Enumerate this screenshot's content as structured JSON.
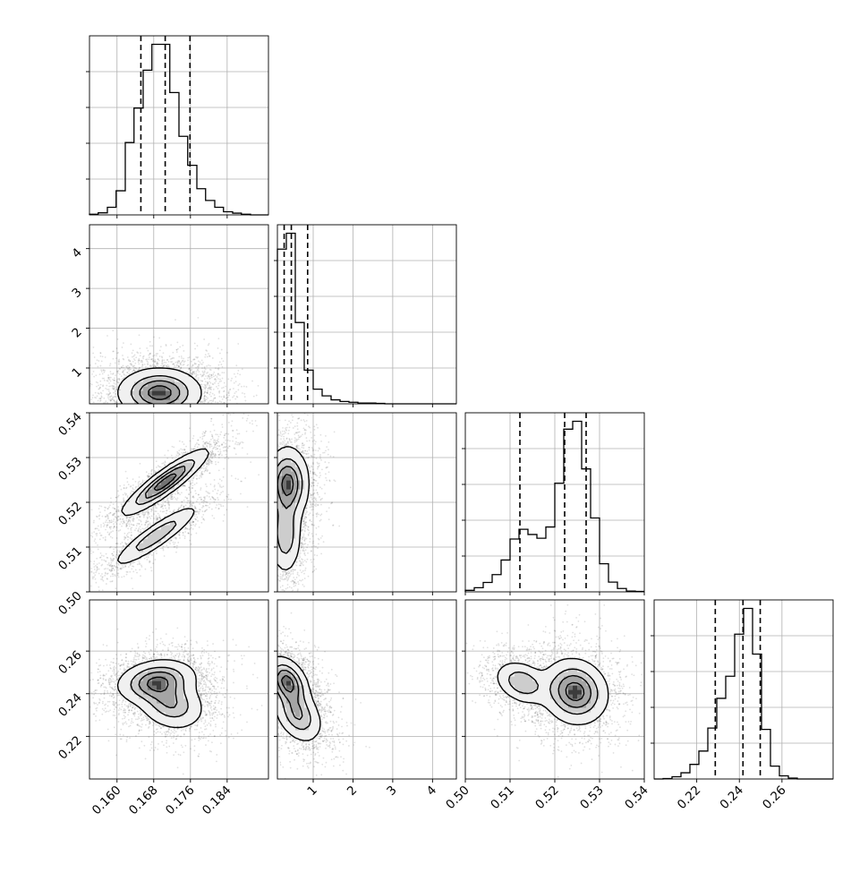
{
  "chart_data": {
    "type": "scatter",
    "subtype": "corner-plot",
    "grid": true,
    "quantiles": [
      0.16,
      0.5,
      0.84
    ],
    "parameters": [
      {
        "range": [
          0.154,
          0.193
        ],
        "ticks": [
          0.16,
          0.168,
          0.176,
          0.184
        ],
        "tick_labels": [
          "0.160",
          "0.168",
          "0.176",
          "0.184"
        ]
      },
      {
        "range": [
          0.1,
          4.6
        ],
        "ticks": [
          1,
          2,
          3,
          4
        ],
        "tick_labels": [
          "1",
          "2",
          "3",
          "4"
        ]
      },
      {
        "range": [
          0.5,
          0.54
        ],
        "ticks": [
          0.5,
          0.51,
          0.52,
          0.53,
          0.54
        ],
        "tick_labels": [
          "0.50",
          "0.51",
          "0.52",
          "0.53",
          "0.54"
        ]
      },
      {
        "range": [
          0.2,
          0.284
        ],
        "ticks": [
          0.22,
          0.24,
          0.26
        ],
        "tick_labels": [
          "0.22",
          "0.24",
          "0.26"
        ]
      }
    ],
    "marginals": [
      {
        "param": 0,
        "bin_edges": [
          0.154,
          0.1559,
          0.1579,
          0.1598,
          0.1618,
          0.1637,
          0.1657,
          0.1676,
          0.1696,
          0.1715,
          0.1735,
          0.1754,
          0.1774,
          0.1793,
          0.1813,
          0.1832,
          0.1852,
          0.1871,
          0.1891,
          0.191,
          0.193
        ],
        "counts": [
          2,
          6,
          22,
          70,
          210,
          310,
          420,
          495,
          495,
          355,
          228,
          144,
          76,
          42,
          22,
          9,
          5,
          2,
          0,
          0
        ],
        "quantile_values": [
          0.1652,
          0.1705,
          0.1759
        ]
      },
      {
        "param": 1,
        "bin_edges": [
          0.1,
          0.325,
          0.55,
          0.775,
          1.0,
          1.225,
          1.45,
          1.675,
          1.9,
          2.125,
          2.35,
          2.575,
          2.8,
          3.025,
          3.25,
          3.475,
          3.7,
          3.925,
          4.15,
          4.375,
          4.6
        ],
        "counts": [
          390,
          430,
          205,
          85,
          37,
          20,
          10,
          6,
          4,
          2,
          2,
          1,
          0,
          0,
          0,
          0,
          0,
          0,
          0,
          0
        ],
        "quantile_values": [
          0.27,
          0.45,
          0.86
        ]
      },
      {
        "param": 2,
        "bin_edges": [
          0.5,
          0.502,
          0.504,
          0.506,
          0.508,
          0.51,
          0.512,
          0.514,
          0.516,
          0.518,
          0.52,
          0.522,
          0.524,
          0.526,
          0.528,
          0.53,
          0.532,
          0.534,
          0.536,
          0.538,
          0.54
        ],
        "counts": [
          4,
          11,
          25,
          46,
          85,
          141,
          167,
          153,
          143,
          173,
          290,
          434,
          455,
          328,
          197,
          75,
          26,
          9,
          2,
          1
        ],
        "quantile_values": [
          0.5122,
          0.5222,
          0.527
        ]
      },
      {
        "param": 3,
        "bin_edges": [
          0.2,
          0.2042,
          0.2084,
          0.2126,
          0.2168,
          0.221,
          0.2252,
          0.2294,
          0.2336,
          0.2378,
          0.242,
          0.2462,
          0.2504,
          0.2546,
          0.2588,
          0.263,
          0.2672,
          0.2714,
          0.2756,
          0.2798,
          0.284
        ],
        "counts": [
          0,
          1,
          5,
          14,
          33,
          63,
          115,
          182,
          232,
          327,
          385,
          282,
          112,
          29,
          7,
          2,
          0,
          0,
          0,
          0
        ],
        "quantile_values": [
          0.2287,
          0.2417,
          0.2498
        ]
      }
    ],
    "joints": [
      {
        "x_param": 0,
        "y_param": 1,
        "modes": [
          {
            "cx": 0.1693,
            "cy": 0.38,
            "sx": 0.0044,
            "sy": 0.3,
            "rho": 0.0,
            "w": 1
          }
        ]
      },
      {
        "x_param": 0,
        "y_param": 2,
        "modes": [
          {
            "cx": 0.1705,
            "cy": 0.5245,
            "sx": 0.0046,
            "sy": 0.0036,
            "rho": 0.9,
            "w": 0.62
          },
          {
            "cx": 0.1685,
            "cy": 0.5125,
            "sx": 0.0046,
            "sy": 0.0034,
            "rho": 0.9,
            "w": 0.38
          }
        ]
      },
      {
        "x_param": 0,
        "y_param": 3,
        "modes": [
          {
            "cx": 0.1686,
            "cy": 0.2458,
            "sx": 0.0042,
            "sy": 0.005,
            "rho": 0.2,
            "w": 0.58
          },
          {
            "cx": 0.1718,
            "cy": 0.2352,
            "sx": 0.0036,
            "sy": 0.006,
            "rho": -0.2,
            "w": 0.42
          }
        ]
      },
      {
        "x_param": 1,
        "y_param": 2,
        "modes": [
          {
            "cx": 0.36,
            "cy": 0.5242,
            "sx": 0.26,
            "sy": 0.004,
            "rho": 0.0,
            "w": 0.62
          },
          {
            "cx": 0.3,
            "cy": 0.5128,
            "sx": 0.2,
            "sy": 0.0044,
            "rho": 0.0,
            "w": 0.38
          }
        ]
      },
      {
        "x_param": 1,
        "y_param": 3,
        "modes": [
          {
            "cx": 0.35,
            "cy": 0.2455,
            "sx": 0.26,
            "sy": 0.0058,
            "rho": -0.35,
            "w": 0.6
          },
          {
            "cx": 0.62,
            "cy": 0.23,
            "sx": 0.3,
            "sy": 0.0065,
            "rho": -0.35,
            "w": 0.4
          }
        ]
      },
      {
        "x_param": 2,
        "y_param": 3,
        "modes": [
          {
            "cx": 0.5127,
            "cy": 0.2452,
            "sx": 0.003,
            "sy": 0.005,
            "rho": -0.3,
            "w": 0.38
          },
          {
            "cx": 0.5245,
            "cy": 0.241,
            "sx": 0.0036,
            "sy": 0.0075,
            "rho": -0.1,
            "w": 0.62
          }
        ]
      }
    ]
  }
}
